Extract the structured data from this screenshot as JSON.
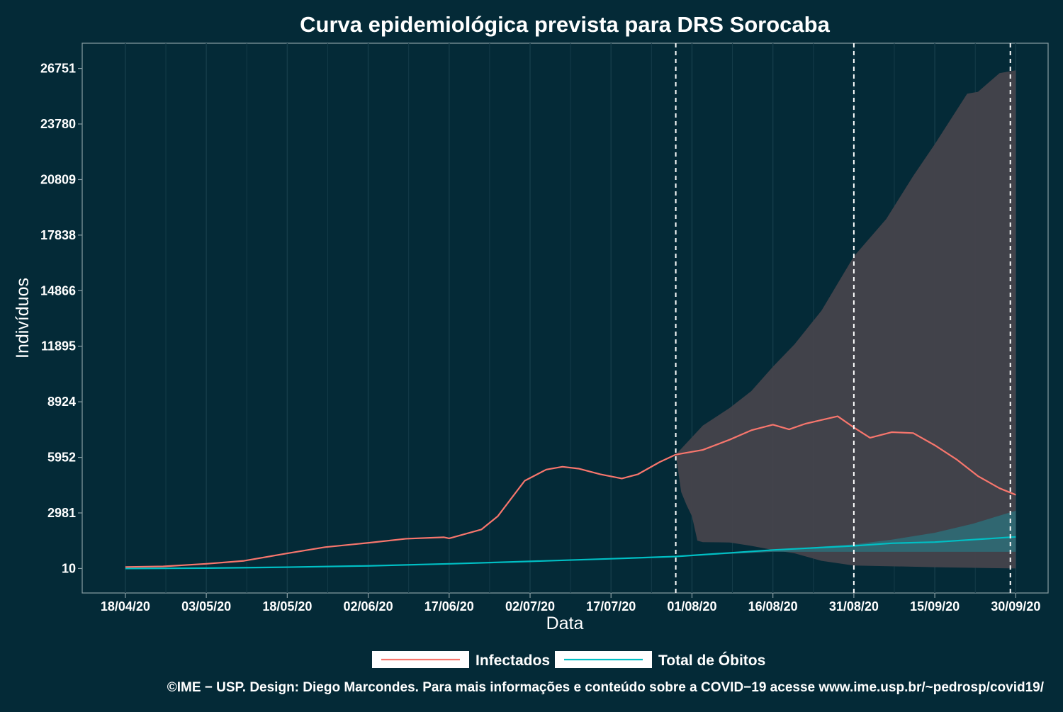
{
  "chart_data": {
    "type": "line",
    "title": "Curva epidemiológica prevista para DRS Sorocaba",
    "xlabel": "Data",
    "ylabel": "Indivíduos",
    "x_ticks": [
      "18/04/20",
      "03/05/20",
      "18/05/20",
      "02/06/20",
      "17/06/20",
      "02/07/20",
      "17/07/20",
      "01/08/20",
      "16/08/20",
      "31/08/20",
      "15/09/20",
      "30/09/20"
    ],
    "y_ticks": [
      10,
      2981,
      5952,
      8924,
      11895,
      14866,
      17838,
      20809,
      23780,
      26751
    ],
    "xlim": [
      "10/04/20",
      "06/10/20"
    ],
    "ylim": [
      -1300,
      28100
    ],
    "grid": true,
    "legend_position": "bottom",
    "vlines": [
      "29/07/20",
      "31/08/20",
      "29/09/20"
    ],
    "series": [
      {
        "name": "Infectados",
        "color": "#f8766d",
        "points": [
          [
            "18/04/20",
            90
          ],
          [
            "25/04/20",
            120
          ],
          [
            "03/05/20",
            260
          ],
          [
            "10/05/20",
            420
          ],
          [
            "18/05/20",
            820
          ],
          [
            "25/05/20",
            1150
          ],
          [
            "02/06/20",
            1380
          ],
          [
            "09/06/20",
            1600
          ],
          [
            "16/06/20",
            1680
          ],
          [
            "17/06/20",
            1620
          ],
          [
            "23/06/20",
            2100
          ],
          [
            "26/06/20",
            2800
          ],
          [
            "01/07/20",
            4700
          ],
          [
            "05/07/20",
            5300
          ],
          [
            "08/07/20",
            5450
          ],
          [
            "11/07/20",
            5350
          ],
          [
            "15/07/20",
            5050
          ],
          [
            "19/07/20",
            4820
          ],
          [
            "22/07/20",
            5050
          ],
          [
            "26/07/20",
            5700
          ],
          [
            "29/07/20",
            6100
          ],
          [
            "03/08/20",
            6350
          ],
          [
            "08/08/20",
            6900
          ],
          [
            "12/08/20",
            7400
          ],
          [
            "16/08/20",
            7700
          ],
          [
            "19/08/20",
            7450
          ],
          [
            "22/08/20",
            7750
          ],
          [
            "25/08/20",
            7950
          ],
          [
            "28/08/20",
            8150
          ],
          [
            "31/08/20",
            7550
          ],
          [
            "03/09/20",
            7000
          ],
          [
            "07/09/20",
            7300
          ],
          [
            "11/09/20",
            7250
          ],
          [
            "15/09/20",
            6600
          ],
          [
            "19/09/20",
            5850
          ],
          [
            "23/09/20",
            4950
          ],
          [
            "27/09/20",
            4300
          ],
          [
            "30/09/20",
            3950
          ]
        ]
      },
      {
        "name": "Total de Óbitos",
        "color": "#00bfc4",
        "points": [
          [
            "18/04/20",
            10
          ],
          [
            "03/05/20",
            30
          ],
          [
            "18/05/20",
            80
          ],
          [
            "02/06/20",
            150
          ],
          [
            "17/06/20",
            260
          ],
          [
            "02/07/20",
            390
          ],
          [
            "17/07/20",
            530
          ],
          [
            "29/07/20",
            650
          ],
          [
            "16/08/20",
            1000
          ],
          [
            "31/08/20",
            1220
          ],
          [
            "07/09/20",
            1360
          ],
          [
            "15/09/20",
            1420
          ],
          [
            "30/09/20",
            1700
          ]
        ]
      }
    ],
    "bands": [
      {
        "series": "Infectados",
        "upper": [
          [
            "29/07/20",
            6100
          ],
          [
            "03/08/20",
            7650
          ],
          [
            "08/08/20",
            8600
          ],
          [
            "12/08/20",
            9500
          ],
          [
            "16/08/20",
            10800
          ],
          [
            "20/08/20",
            12000
          ],
          [
            "25/08/20",
            13800
          ],
          [
            "31/08/20",
            16700
          ],
          [
            "06/09/20",
            18700
          ],
          [
            "11/09/20",
            21000
          ],
          [
            "15/09/20",
            22700
          ],
          [
            "21/09/20",
            25400
          ],
          [
            "23/09/20",
            25500
          ],
          [
            "27/09/20",
            26500
          ],
          [
            "30/09/20",
            26650
          ]
        ],
        "lower": [
          [
            "29/07/20",
            6100
          ],
          [
            "30/07/20",
            4100
          ],
          [
            "31/07/20",
            3400
          ],
          [
            "01/08/20",
            2800
          ],
          [
            "02/08/20",
            1500
          ],
          [
            "03/08/20",
            1420
          ],
          [
            "08/08/20",
            1400
          ],
          [
            "12/08/20",
            1220
          ],
          [
            "16/08/20",
            1000
          ],
          [
            "20/08/20",
            820
          ],
          [
            "25/08/20",
            420
          ],
          [
            "31/08/20",
            170
          ],
          [
            "15/09/20",
            80
          ],
          [
            "30/09/20",
            10
          ]
        ]
      },
      {
        "series": "Total de Óbitos",
        "upper": [
          [
            "29/07/20",
            650
          ],
          [
            "16/08/20",
            1000
          ],
          [
            "31/08/20",
            1300
          ],
          [
            "07/09/20",
            1550
          ],
          [
            "15/09/20",
            1920
          ],
          [
            "22/09/20",
            2400
          ],
          [
            "30/09/20",
            3100
          ]
        ],
        "lower": [
          [
            "29/07/20",
            650
          ],
          [
            "16/08/20",
            900
          ],
          [
            "31/08/20",
            900
          ],
          [
            "15/09/20",
            900
          ],
          [
            "30/09/20",
            900
          ]
        ]
      }
    ]
  },
  "footer": {
    "credit": "©IME − USP. Design: Diego Marcondes. Para mais informações e conteúdo sobre a COVID−19 acesse www.ime.usp.br/~pedrosp/covid19/"
  },
  "colors": {
    "background": "#042a37",
    "band_infectados": "#47444c",
    "band_obitos": "#2f6a74",
    "grid": "#153c49",
    "text": "#ffffff"
  }
}
